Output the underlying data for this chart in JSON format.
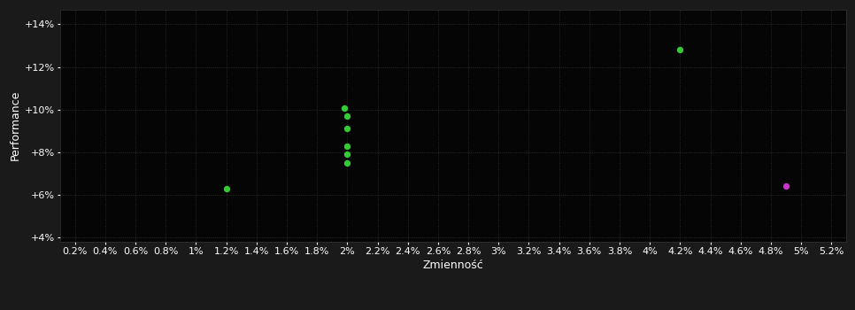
{
  "background_color": "#1a1a1a",
  "plot_bg_color": "#050505",
  "grid_color": "#333333",
  "grid_linestyle": ":",
  "xlabel": "Zmienność",
  "ylabel": "Performance",
  "xlim": [
    0.001,
    0.053
  ],
  "ylim": [
    0.038,
    0.147
  ],
  "xticks": [
    0.002,
    0.004,
    0.006,
    0.008,
    0.01,
    0.012,
    0.014,
    0.016,
    0.018,
    0.02,
    0.022,
    0.024,
    0.026,
    0.028,
    0.03,
    0.032,
    0.034,
    0.036,
    0.038,
    0.04,
    0.042,
    0.044,
    0.046,
    0.048,
    0.05,
    0.052
  ],
  "xtick_labels": [
    "0.2%",
    "0.4%",
    "0.6%",
    "0.8%",
    "1%",
    "1.2%",
    "1.4%",
    "1.6%",
    "1.8%",
    "2%",
    "2.2%",
    "2.4%",
    "2.6%",
    "2.8%",
    "3%",
    "3.2%",
    "3.4%",
    "3.6%",
    "3.8%",
    "4%",
    "4.2%",
    "4.4%",
    "4.6%",
    "4.8%",
    "5%",
    "5.2%"
  ],
  "yticks": [
    0.04,
    0.06,
    0.08,
    0.1,
    0.12,
    0.14
  ],
  "ytick_labels": [
    "+4%",
    "+6%",
    "+8%",
    "+10%",
    "+12%",
    "+14%"
  ],
  "green_points": [
    [
      0.012,
      0.063
    ],
    [
      0.0198,
      0.1005
    ],
    [
      0.02,
      0.097
    ],
    [
      0.02,
      0.091
    ],
    [
      0.02,
      0.083
    ],
    [
      0.02,
      0.079
    ],
    [
      0.02,
      0.075
    ],
    [
      0.042,
      0.128
    ]
  ],
  "magenta_points": [
    [
      0.049,
      0.064
    ]
  ],
  "green_color": "#33cc33",
  "magenta_color": "#cc33cc",
  "marker_size": 28,
  "tick_color": "#ffffff",
  "label_color": "#ffffff",
  "label_fontsize": 9,
  "tick_fontsize": 8
}
